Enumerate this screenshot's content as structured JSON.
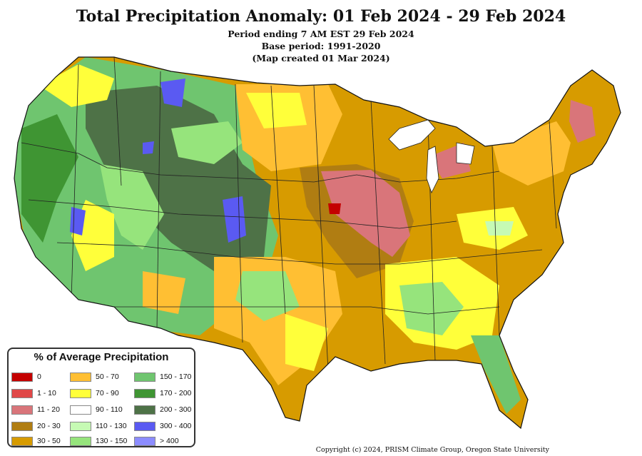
{
  "header": {
    "title": "Total Precipitation Anomaly: 01 Feb 2024 - 29 Feb 2024",
    "line1": "Period ending 7 AM EST 29 Feb 2024",
    "line2": "Base period: 1991-2020",
    "line3": "(Map created 01 Mar 2024)"
  },
  "legend": {
    "title": "% of Average Precipitation",
    "items": [
      {
        "label": "0",
        "color": "#c40000"
      },
      {
        "label": "1 - 10",
        "color": "#e04848"
      },
      {
        "label": "11 - 20",
        "color": "#d9757a"
      },
      {
        "label": "20 - 30",
        "color": "#b07d12"
      },
      {
        "label": "30 - 50",
        "color": "#d79b00"
      },
      {
        "label": "50 - 70",
        "color": "#ffbf33"
      },
      {
        "label": "70 - 90",
        "color": "#ffff3a"
      },
      {
        "label": "90 - 110",
        "color": "#ffffff"
      },
      {
        "label": "110 - 130",
        "color": "#c6fab4"
      },
      {
        "label": "130 - 150",
        "color": "#96e47c"
      },
      {
        "label": "150 - 170",
        "color": "#6fc56f"
      },
      {
        "label": "170 - 200",
        "color": "#3f9533"
      },
      {
        "label": "200 - 300",
        "color": "#4e7247"
      },
      {
        "label": "300 - 400",
        "color": "#5a5af2"
      },
      {
        "label": "> 400",
        "color": "#8c8cff"
      }
    ]
  },
  "copyright": "Copyright (c) 2024, PRISM Climate Group, Oregon State University"
}
